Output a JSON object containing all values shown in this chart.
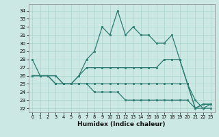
{
  "xlabel": "Humidex (Indice chaleur)",
  "bg_color": "#cce8e4",
  "line_color": "#2a7a70",
  "grid_color": "#aad4ce",
  "xlim": [
    -0.5,
    23.5
  ],
  "ylim": [
    21.5,
    34.8
  ],
  "yticks": [
    22,
    23,
    24,
    25,
    26,
    27,
    28,
    29,
    30,
    31,
    32,
    33,
    34
  ],
  "xticks": [
    0,
    1,
    2,
    3,
    4,
    5,
    6,
    7,
    8,
    9,
    10,
    11,
    12,
    13,
    14,
    15,
    16,
    17,
    18,
    19,
    20,
    21,
    22,
    23
  ],
  "series": [
    [
      28,
      26,
      26,
      26,
      25,
      25,
      26,
      28,
      29,
      32,
      31,
      34,
      31,
      32,
      31,
      31,
      30,
      30,
      31,
      28,
      25,
      23,
      22,
      22.5
    ],
    [
      26,
      26,
      26,
      25,
      25,
      25,
      26,
      27,
      27,
      27,
      27,
      27,
      27,
      27,
      27,
      27,
      27,
      28,
      28,
      28,
      25,
      22,
      22.5,
      22.5
    ],
    [
      26,
      26,
      26,
      26,
      25,
      25,
      25,
      25,
      25,
      25,
      25,
      25,
      25,
      25,
      25,
      25,
      25,
      25,
      25,
      25,
      25,
      22,
      22.5,
      22.5
    ],
    [
      26,
      26,
      26,
      25,
      25,
      25,
      25,
      25,
      24,
      24,
      24,
      24,
      23,
      23,
      23,
      23,
      23,
      23,
      23,
      23,
      23,
      22,
      22,
      22
    ]
  ]
}
